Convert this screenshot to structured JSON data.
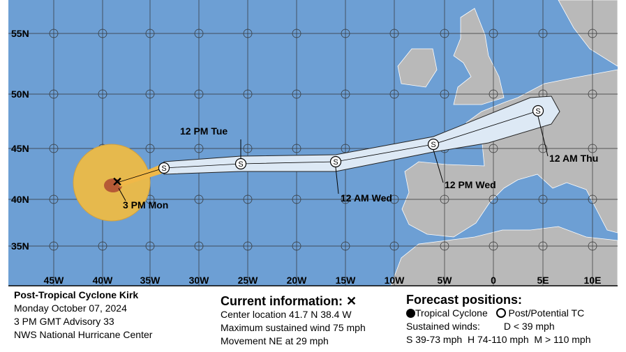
{
  "map": {
    "lat_labels": [
      "55N",
      "50N",
      "45N",
      "40N",
      "35N"
    ],
    "lon_labels": [
      "45W",
      "40W",
      "35W",
      "30W",
      "25W",
      "20W",
      "15W",
      "10W",
      "5W",
      "0",
      "5E",
      "10E"
    ],
    "point_symbol": "S",
    "track_labels": [
      "12 PM Tue",
      "3 PM Mon",
      "12 AM Wed",
      "12 PM Wed",
      "12 AM Thu"
    ]
  },
  "info": {
    "storm": "Post-Tropical Cyclone Kirk",
    "date": "Monday October 07, 2024",
    "advisory": "3 PM GMT Advisory 33",
    "center": "NWS National Hurricane Center"
  },
  "current": {
    "heading": "Current information:",
    "location": "Center location 41.7 N 38.4 W",
    "wind": "Maximum sustained wind 75 mph",
    "movement": "Movement NE at 29 mph"
  },
  "forecast": {
    "heading": "Forecast positions:",
    "tropical": "Tropical Cyclone",
    "post": "Post/Potential TC",
    "winds": "Sustained winds:",
    "d": "D < 39 mph",
    "s": "S 39-73 mph",
    "h": "H 74-110 mph",
    "m": "M > 110 mph"
  }
}
